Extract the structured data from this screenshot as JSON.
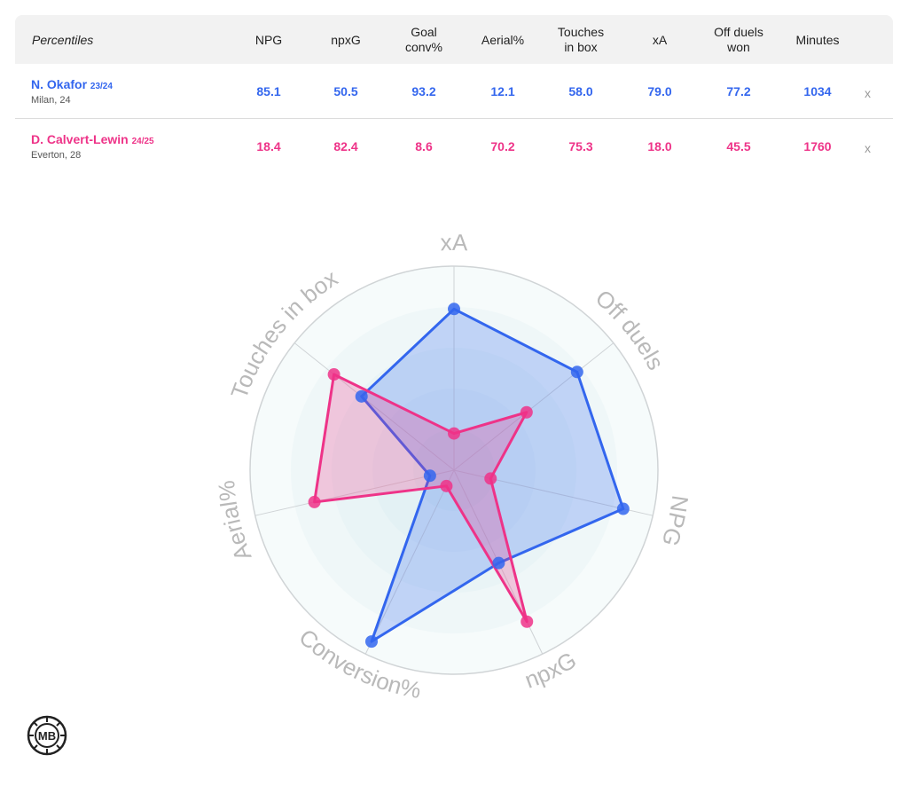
{
  "table": {
    "label": "Percentiles",
    "columns": [
      {
        "key": "npg",
        "text": "NPG"
      },
      {
        "key": "npxg",
        "text": "npxG"
      },
      {
        "key": "goal_conv",
        "text": "Goal\nconv%"
      },
      {
        "key": "aerial",
        "text": "Aerial%"
      },
      {
        "key": "touches",
        "text": "Touches\nin box"
      },
      {
        "key": "xa",
        "text": "xA"
      },
      {
        "key": "off_duels",
        "text": "Off duels\nwon"
      },
      {
        "key": "minutes",
        "text": "Minutes"
      }
    ],
    "remove_label": "x",
    "players": [
      {
        "name": "N. Okafor",
        "season": "23/24",
        "sub": "Milan, 24",
        "color": "#3366ee",
        "values": [
          "85.1",
          "50.5",
          "93.2",
          "12.1",
          "58.0",
          "79.0",
          "77.2",
          "1034"
        ]
      },
      {
        "name": "D. Calvert-Lewin",
        "season": "24/25",
        "sub": "Everton, 28",
        "color": "#ee3388",
        "values": [
          "18.4",
          "82.4",
          "8.6",
          "70.2",
          "75.3",
          "18.0",
          "45.5",
          "1760"
        ]
      }
    ]
  },
  "chart_data": {
    "type": "radar",
    "axes": [
      "xA",
      "Off duels",
      "NPG",
      "npxG",
      "Conversion%",
      "Aerial%",
      "Touches in box"
    ],
    "range": [
      0,
      100
    ],
    "series": [
      {
        "name": "N. Okafor 23/24",
        "color": "#3366ee",
        "values": [
          79.0,
          77.2,
          85.1,
          50.5,
          93.2,
          12.1,
          58.0
        ]
      },
      {
        "name": "D. Calvert-Lewin 24/25",
        "color": "#ee3388",
        "values": [
          18.0,
          45.5,
          18.4,
          82.4,
          8.6,
          70.2,
          75.3
        ]
      }
    ]
  },
  "logo": {
    "text": "MB"
  }
}
